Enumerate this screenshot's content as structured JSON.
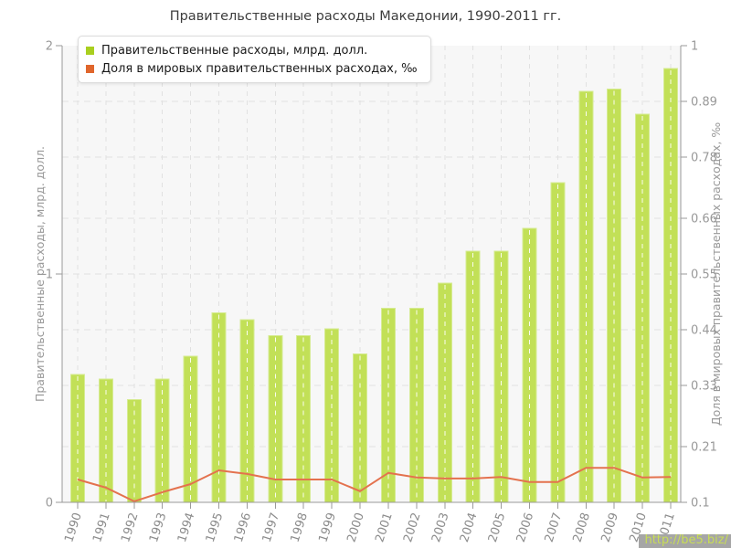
{
  "chart_data": {
    "type": "bar",
    "title": "Правительственные расходы Македонии, 1990-2011 гг.",
    "categories": [
      "1990",
      "1991",
      "1992",
      "1993",
      "1994",
      "1995",
      "1996",
      "1997",
      "1998",
      "1999",
      "2000",
      "2001",
      "2002",
      "2003",
      "2004",
      "2005",
      "2006",
      "2007",
      "2008",
      "2009",
      "2010",
      "2011"
    ],
    "series": [
      {
        "name": "Правительственные расходы, млрд. долл.",
        "type": "bar",
        "axis": "left",
        "swatch_color": "#a9cf1f",
        "fill": "#c2e057",
        "border": "#d6eb93",
        "values": [
          0.56,
          0.54,
          0.45,
          0.54,
          0.64,
          0.83,
          0.8,
          0.73,
          0.73,
          0.76,
          0.65,
          0.85,
          0.85,
          0.96,
          1.1,
          1.1,
          1.2,
          1.4,
          1.8,
          1.81,
          1.7,
          1.9
        ]
      },
      {
        "name": "Доля в мировых правительственных расходах, ‰",
        "type": "line",
        "axis": "right",
        "swatch_color": "#e0662c",
        "stroke": "#e4724e",
        "values": [
          0.145,
          0.129,
          0.102,
          0.12,
          0.136,
          0.163,
          0.156,
          0.145,
          0.145,
          0.145,
          0.122,
          0.158,
          0.149,
          0.147,
          0.147,
          0.15,
          0.14,
          0.14,
          0.168,
          0.168,
          0.149,
          0.15
        ]
      }
    ],
    "left_axis": {
      "label": "Правительственные расходы, млрд. долл.",
      "range": [
        0,
        2
      ],
      "ticks": [
        0,
        1,
        2
      ]
    },
    "right_axis": {
      "label": "Доля в мировых правительственных расходах, ‰",
      "range": [
        0.1,
        1
      ],
      "ticks": [
        0.1,
        0.21,
        0.33,
        0.44,
        0.55,
        0.66,
        0.78,
        0.89,
        1
      ]
    },
    "grid": true,
    "legend_position": "top-left",
    "colors": {
      "plot_bg": "#f7f7f7",
      "grid": "#e1e1e1",
      "axis": "#9a9a9a",
      "tick_text": "#999999",
      "year_text": "#8c8c8c",
      "title_text": "#3c3c3c"
    }
  },
  "watermark": {
    "text": "http://be5.biz/",
    "bg": "#a6a6a6",
    "color": "#c8dd55"
  }
}
